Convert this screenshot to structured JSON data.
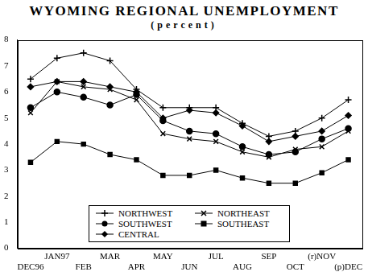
{
  "chart_data": {
    "type": "line",
    "title": "WYOMING REGIONAL UNEMPLOYMENT",
    "subtitle": "(percent)",
    "categories": [
      "DEC96",
      "JAN97",
      "FEB",
      "MAR",
      "APR",
      "MAY",
      "JUN",
      "JUL",
      "AUG",
      "SEP",
      "OCT",
      "(r)NOV",
      "(p)DEC"
    ],
    "series": [
      {
        "name": "NORTHWEST",
        "color": "#000000",
        "marker": "plus",
        "line_style": "solid",
        "values": [
          6.5,
          7.3,
          7.5,
          7.2,
          6.1,
          5.4,
          5.4,
          5.4,
          4.8,
          4.3,
          4.5,
          5.0,
          5.7
        ]
      },
      {
        "name": "NORTHEAST",
        "color": "#000000",
        "marker": "x",
        "line_style": "solid",
        "values": [
          5.2,
          6.4,
          6.2,
          6.1,
          5.7,
          4.4,
          4.2,
          4.1,
          3.7,
          3.5,
          3.8,
          3.9,
          4.5
        ]
      },
      {
        "name": "SOUTHWEST",
        "color": "#000000",
        "marker": "circle",
        "line_style": "solid",
        "values": [
          5.4,
          6.0,
          5.8,
          5.5,
          5.9,
          4.9,
          4.5,
          4.4,
          3.9,
          3.6,
          3.7,
          4.2,
          4.6
        ]
      },
      {
        "name": "SOUTHEAST",
        "color": "#000000",
        "marker": "square",
        "line_style": "solid",
        "values": [
          3.3,
          4.1,
          4.0,
          3.6,
          3.4,
          2.8,
          2.8,
          3.0,
          2.7,
          2.5,
          2.5,
          2.9,
          3.4
        ]
      },
      {
        "name": "CENTRAL",
        "color": "#000000",
        "marker": "diamond",
        "line_style": "solid",
        "values": [
          6.2,
          6.4,
          6.4,
          6.2,
          6.0,
          5.0,
          5.3,
          5.2,
          4.7,
          4.1,
          4.3,
          4.5,
          5.1
        ]
      }
    ],
    "ylim": [
      0,
      8
    ],
    "yticks": [
      0,
      1,
      2,
      3,
      4,
      5,
      6,
      7,
      8
    ],
    "grid": false,
    "legend": "bottom"
  }
}
